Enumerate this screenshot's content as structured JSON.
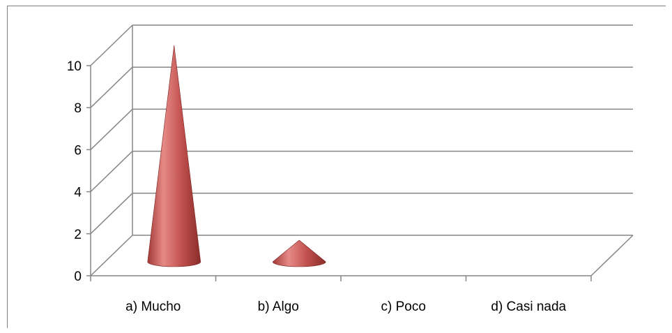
{
  "chart_data": {
    "type": "bar",
    "style": "3d-cone",
    "categories": [
      "a)  Mucho",
      "b)  Algo",
      "c)  Poco",
      "d)  Casi nada"
    ],
    "values": [
      10,
      1,
      0,
      0
    ],
    "ylim": [
      0,
      10
    ],
    "yticks": [
      0,
      2,
      4,
      6,
      8,
      10
    ],
    "grid": true,
    "legend": "none",
    "colors": {
      "bar": "#c0504d",
      "bar_light": "#e68a87",
      "bar_dark": "#7b2422",
      "grid": "#868686",
      "axis": "#868686"
    }
  }
}
